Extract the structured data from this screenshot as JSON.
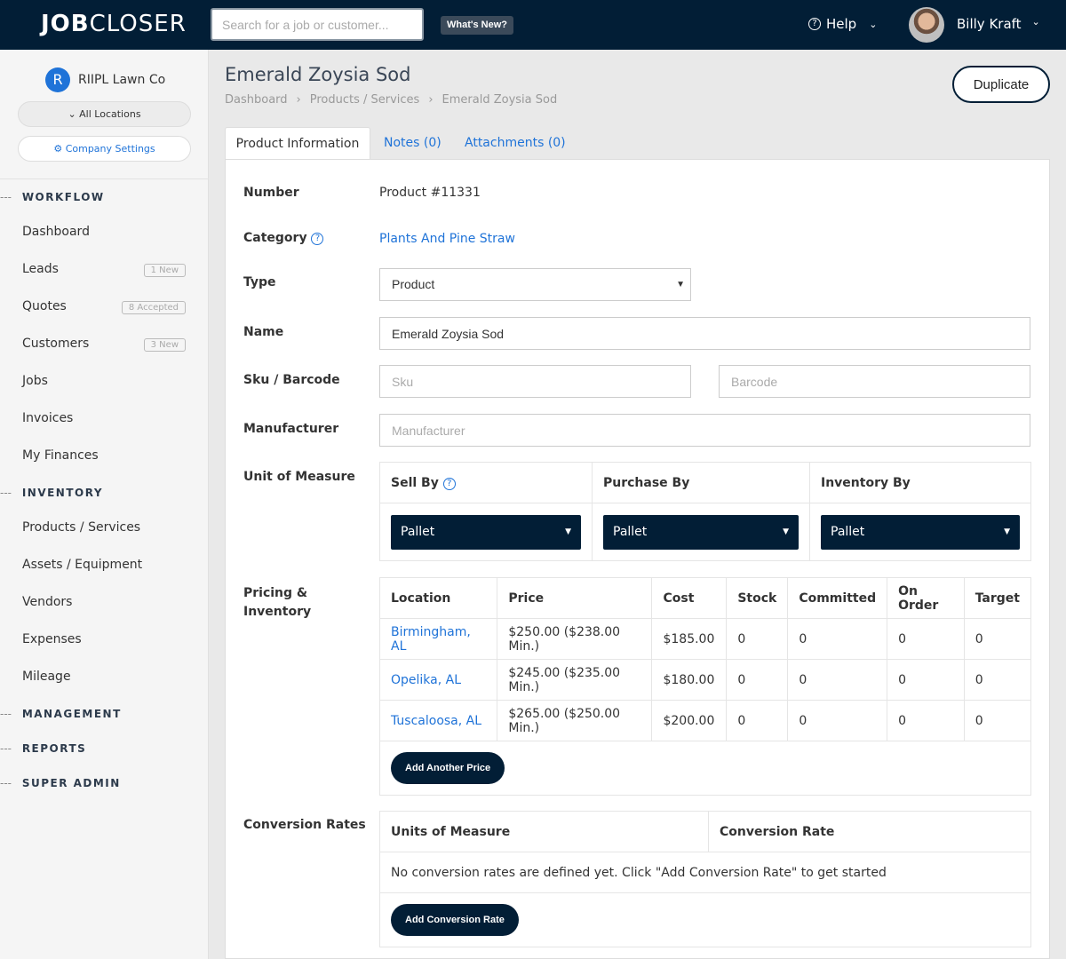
{
  "header": {
    "logo_bold": "JOB",
    "logo_rest": "CLOSER",
    "search_placeholder": "Search for a job or customer...",
    "whats_new": "What's New?",
    "help": "Help",
    "user_name": "Billy Kraft"
  },
  "sidebar": {
    "company": "RIIPL Lawn Co",
    "company_initial": "R",
    "locations": "All Locations",
    "settings": "Company Settings",
    "sections": {
      "workflow": "WORKFLOW",
      "inventory": "INVENTORY",
      "management": "MANAGEMENT",
      "reports": "REPORTS",
      "super_admin": "SUPER ADMIN"
    },
    "workflow": [
      {
        "label": "Dashboard"
      },
      {
        "label": "Leads",
        "badge": "1 New"
      },
      {
        "label": "Quotes",
        "badge": "8 Accepted"
      },
      {
        "label": "Customers",
        "badge": "3 New"
      },
      {
        "label": "Jobs"
      },
      {
        "label": "Invoices"
      },
      {
        "label": "My Finances"
      }
    ],
    "inventory": [
      {
        "label": "Products / Services"
      },
      {
        "label": "Assets / Equipment"
      },
      {
        "label": "Vendors"
      },
      {
        "label": "Expenses"
      },
      {
        "label": "Mileage"
      }
    ]
  },
  "page": {
    "title": "Emerald Zoysia Sod",
    "breadcrumb": [
      "Dashboard",
      "Products / Services",
      "Emerald Zoysia Sod"
    ],
    "duplicate": "Duplicate",
    "tabs": [
      "Product Information",
      "Notes (0)",
      "Attachments (0)"
    ]
  },
  "form": {
    "number_label": "Number",
    "number": "Product #11331",
    "category_label": "Category",
    "category": "Plants And Pine Straw",
    "type_label": "Type",
    "type": "Product",
    "name_label": "Name",
    "name": "Emerald Zoysia Sod",
    "sku_label": "Sku / Barcode",
    "sku_placeholder": "Sku",
    "barcode_placeholder": "Barcode",
    "manufacturer_label": "Manufacturer",
    "manufacturer_placeholder": "Manufacturer",
    "uom_label": "Unit of Measure",
    "uom_headers": [
      "Sell By",
      "Purchase By",
      "Inventory By"
    ],
    "uom_values": [
      "Pallet",
      "Pallet",
      "Pallet"
    ],
    "pricing_label_1": "Pricing &",
    "pricing_label_2": "Inventory",
    "pricing_headers": [
      "Location",
      "Price",
      "Cost",
      "Stock",
      "Committed",
      "On Order",
      "Target"
    ],
    "pricing_rows": [
      [
        "Birmingham, AL",
        "$250.00 ($238.00 Min.)",
        "$185.00",
        "0",
        "0",
        "0",
        "0"
      ],
      [
        "Opelika, AL",
        "$245.00 ($235.00 Min.)",
        "$180.00",
        "0",
        "0",
        "0",
        "0"
      ],
      [
        "Tuscaloosa, AL",
        "$265.00 ($250.00 Min.)",
        "$200.00",
        "0",
        "0",
        "0",
        "0"
      ]
    ],
    "add_price": "Add Another Price",
    "conversion_label": "Conversion Rates",
    "conversion_headers": [
      "Units of Measure",
      "Conversion Rate"
    ],
    "conversion_empty": "No conversion rates are defined yet. Click \"Add Conversion Rate\" to get started",
    "add_conversion": "Add Conversion Rate"
  }
}
